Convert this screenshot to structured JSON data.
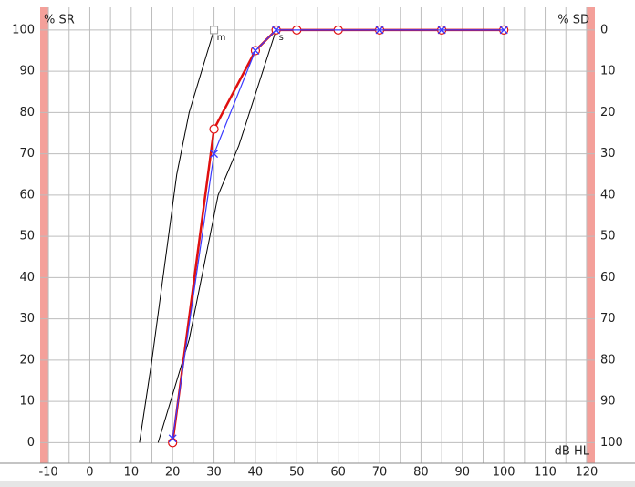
{
  "chart_data": {
    "type": "line",
    "y_label": "% SR",
    "y2_label": "% SD",
    "x_label": "dB HL",
    "xlim": [
      -12,
      122
    ],
    "ylim": [
      -5,
      105.5
    ],
    "y2lim": [
      105,
      -5.5
    ],
    "xticks": [
      -10,
      0,
      10,
      20,
      30,
      40,
      50,
      60,
      70,
      80,
      90,
      100,
      110,
      120
    ],
    "yticks": [
      0,
      10,
      20,
      30,
      40,
      50,
      60,
      70,
      80,
      90,
      100
    ],
    "y2ticks": [
      0,
      10,
      20,
      30,
      40,
      50,
      60,
      70,
      80,
      90,
      100
    ],
    "grid": true,
    "series": [
      {
        "color": "#000000",
        "marker": "none",
        "x": [
          12,
          15,
          19,
          21,
          24,
          30
        ],
        "values": [
          0,
          20,
          50,
          65,
          80,
          100
        ]
      },
      {
        "color": "#000000",
        "marker": "none",
        "x": [
          16.5,
          24,
          28,
          31,
          36,
          45
        ],
        "values": [
          0,
          25,
          45,
          60,
          72,
          100
        ]
      },
      {
        "color": "#e01010",
        "marker": "circle",
        "x": [
          20,
          30,
          40,
          45,
          50,
          60,
          70,
          85,
          100
        ],
        "values": [
          0,
          76,
          95,
          100,
          100,
          100,
          100,
          100,
          100
        ]
      },
      {
        "color": "#3a3aff",
        "marker": "cross",
        "x": [
          20,
          30,
          40,
          45,
          70,
          85,
          100
        ],
        "values": [
          1,
          70,
          95,
          100,
          100,
          100,
          100
        ]
      }
    ],
    "annotations": [
      {
        "text": "m",
        "x": 30,
        "y": 100
      },
      {
        "text": "s",
        "x": 45,
        "y": 100
      }
    ]
  }
}
